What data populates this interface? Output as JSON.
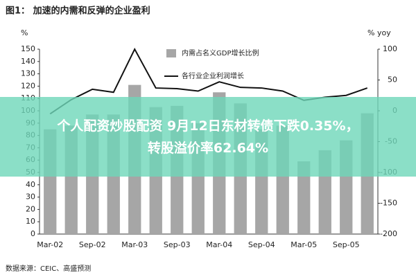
{
  "chart_data": {
    "type": "bar",
    "title": "图1： 加速的内需和反弹的企业盈利",
    "y_label": "%",
    "y2_label": "% yoy",
    "source": "数据来源：CEIC、高盛预测",
    "categories": [
      "Mar-02",
      null,
      "Sep-02",
      null,
      "Mar-03",
      null,
      "Sep-03",
      null,
      "Mar-04",
      null,
      "Sep-04",
      null,
      "Mar-05",
      null,
      "Sep-05",
      null
    ],
    "series": [
      {
        "name": "内需占名义GDP增长比例",
        "type": "bar",
        "color": "#a6a6a6",
        "values": [
          85,
          88,
          97,
          97,
          121,
          103,
          104,
          90,
          115,
          106,
          85,
          88,
          59,
          68,
          76,
          98
        ]
      },
      {
        "name": "各行业企业利润增长",
        "type": "line",
        "axis": "y2",
        "color": "#111111",
        "values": [
          -5,
          18,
          35,
          30,
          100,
          37,
          36,
          32,
          47,
          38,
          37,
          32,
          17,
          22,
          25,
          37
        ]
      }
    ],
    "ylim": [
      0,
      150
    ],
    "yticks": [
      0,
      10,
      20,
      30,
      40,
      50,
      60,
      70,
      80,
      90,
      100,
      110,
      120,
      130,
      140,
      150
    ],
    "y2lim": [
      -200,
      100
    ],
    "y2ticks": [
      -200,
      -150,
      -100,
      -50,
      0,
      50,
      100
    ]
  },
  "overlay": {
    "lines": [
      "个人配资炒股配资 9月12日东材转债下跌0.35%，",
      "转股溢价率62.64%"
    ]
  }
}
